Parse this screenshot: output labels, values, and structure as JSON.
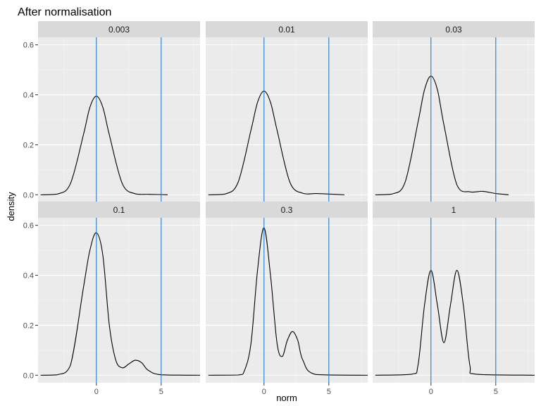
{
  "chart_data": {
    "type": "line",
    "title": "After normalisation",
    "xlabel": "norm",
    "ylabel": "density",
    "xlim": [
      -4.5,
      8
    ],
    "ylim": [
      -0.03,
      0.63
    ],
    "x_ticks": [
      0,
      5
    ],
    "x_tick_labels": [
      "0",
      "5"
    ],
    "y_ticks": [
      0,
      0.2,
      0.4,
      0.6
    ],
    "y_tick_labels": [
      "0.0",
      "0.2",
      "0.4",
      "0.6"
    ],
    "vlines": [
      0,
      5
    ],
    "vline_color": "#1f77c4",
    "line_color": "#000000",
    "panel_bg": "#ebebeb",
    "strip_bg": "#d9d9d9",
    "grid": true,
    "layout": "2x3 facets",
    "panels": [
      {
        "label": "0.003",
        "x": [
          -4.3,
          -3,
          -2,
          -1,
          -0.5,
          0,
          0.5,
          1,
          2,
          3,
          4,
          5,
          5.5
        ],
        "y": [
          0,
          0.003,
          0.045,
          0.24,
          0.35,
          0.395,
          0.35,
          0.24,
          0.045,
          0.004,
          0.002,
          0.001,
          0
        ]
      },
      {
        "label": "0.01",
        "x": [
          -4.3,
          -3,
          -2,
          -1,
          -0.5,
          0,
          0.5,
          1,
          2,
          3,
          4,
          5,
          6.2
        ],
        "y": [
          0,
          0.003,
          0.05,
          0.26,
          0.37,
          0.415,
          0.37,
          0.26,
          0.05,
          0.006,
          0.005,
          0.003,
          0
        ]
      },
      {
        "label": "0.03",
        "x": [
          -4.3,
          -3,
          -2,
          -1,
          -0.5,
          0,
          0.5,
          1,
          2,
          3,
          4,
          5,
          6
        ],
        "y": [
          0,
          0.003,
          0.05,
          0.29,
          0.42,
          0.475,
          0.42,
          0.28,
          0.04,
          0.012,
          0.014,
          0.005,
          0
        ]
      },
      {
        "label": "0.1",
        "x": [
          -4.3,
          -3,
          -2,
          -1,
          -0.5,
          0,
          0.5,
          1,
          1.5,
          2,
          2.5,
          3,
          3.5,
          4,
          5,
          8
        ],
        "y": [
          0,
          0.002,
          0.04,
          0.35,
          0.5,
          0.57,
          0.48,
          0.2,
          0.06,
          0.03,
          0.045,
          0.06,
          0.05,
          0.02,
          0.002,
          0
        ]
      },
      {
        "label": "0.3",
        "x": [
          -4.3,
          -2,
          -1.5,
          -1,
          -0.5,
          0,
          0.5,
          1,
          1.4,
          1.8,
          2.2,
          2.6,
          3,
          4,
          8
        ],
        "y": [
          0,
          0.001,
          0.02,
          0.13,
          0.42,
          0.59,
          0.4,
          0.13,
          0.075,
          0.14,
          0.175,
          0.14,
          0.06,
          0.003,
          0
        ]
      },
      {
        "label": "1",
        "x": [
          -4.3,
          -1.5,
          -1,
          -0.5,
          0,
          0.5,
          1,
          1.5,
          2,
          2.5,
          3,
          3.5,
          8
        ],
        "y": [
          0,
          0.004,
          0.04,
          0.28,
          0.42,
          0.28,
          0.13,
          0.28,
          0.42,
          0.28,
          0.04,
          0.004,
          0
        ]
      }
    ]
  }
}
